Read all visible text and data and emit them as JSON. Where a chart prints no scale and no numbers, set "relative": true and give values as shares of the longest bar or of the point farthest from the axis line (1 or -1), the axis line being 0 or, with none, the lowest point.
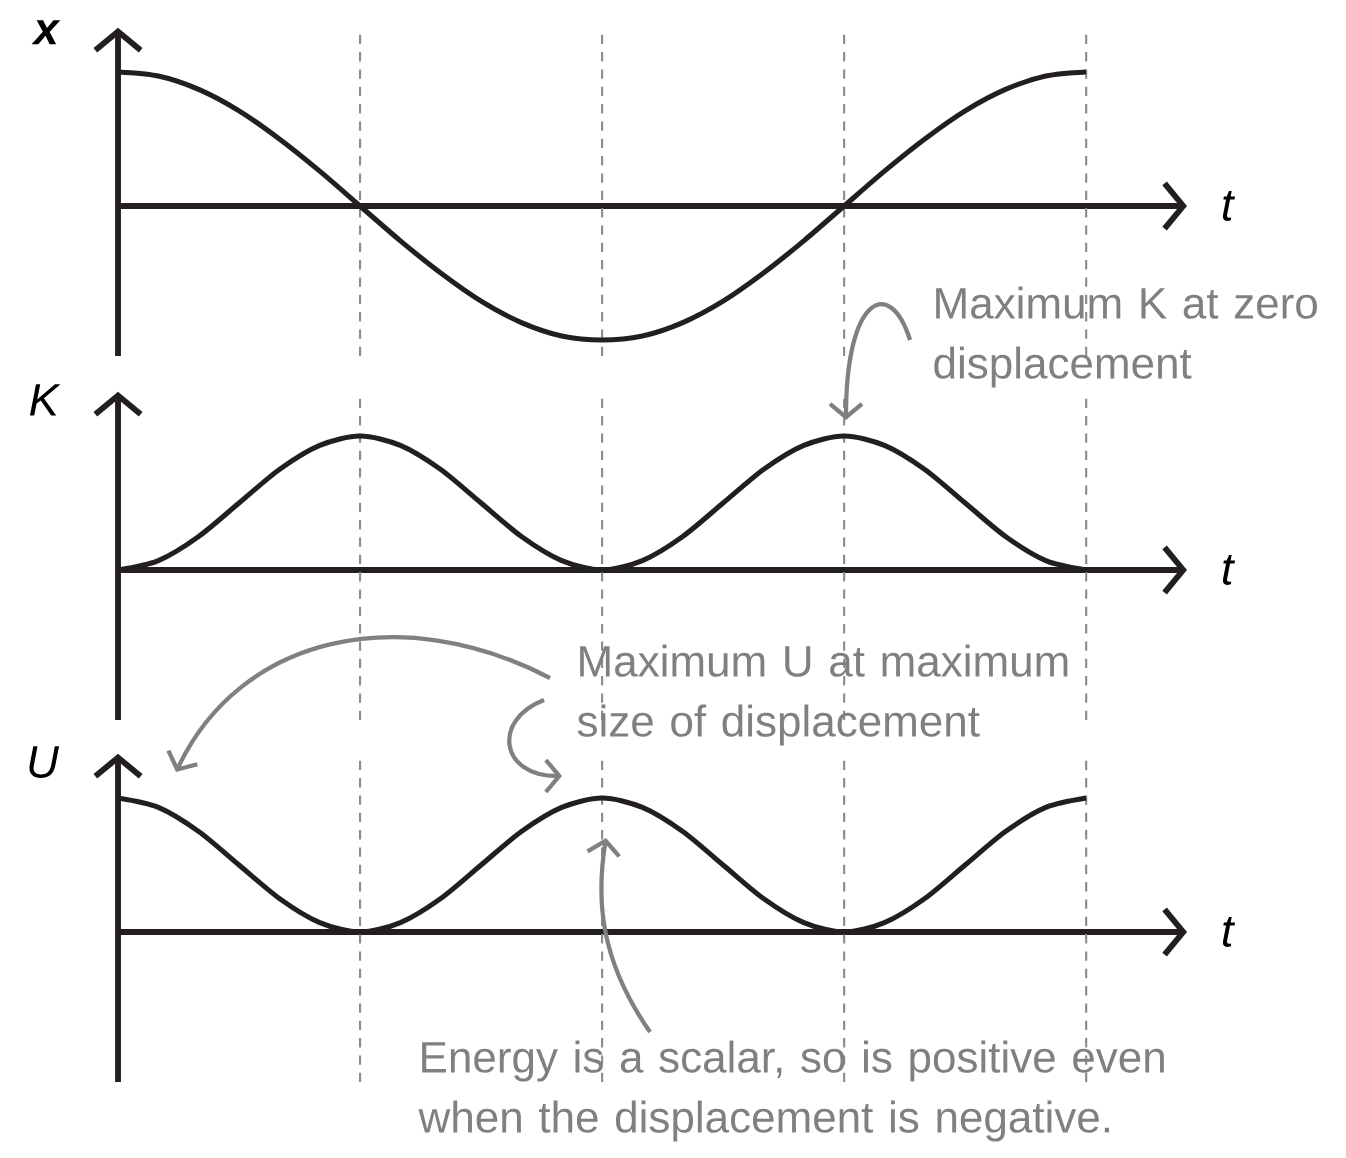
{
  "chart_data": [
    {
      "type": "line",
      "xlabel": "t",
      "ylabel": "x",
      "relative": true,
      "grid": "x",
      "categories": [
        null,
        null,
        null,
        null,
        null,
        null,
        null,
        null,
        null,
        null,
        null,
        null,
        null,
        null,
        null,
        null,
        null,
        null,
        null,
        null,
        null,
        null,
        null,
        null,
        null
      ],
      "series": [
        {
          "color": "#231f20",
          "values": [
            1,
            0.97,
            0.87,
            0.71,
            0.5,
            0.26,
            0,
            -0.26,
            -0.5,
            -0.71,
            -0.87,
            -0.97,
            -1,
            -0.97,
            -0.87,
            -0.71,
            -0.5,
            -0.26,
            0,
            0.26,
            0.5,
            0.71,
            0.87,
            0.97,
            1
          ]
        }
      ]
    },
    {
      "type": "line",
      "xlabel": "t",
      "ylabel": "K",
      "relative": true,
      "grid": "x",
      "categories": [
        null,
        null,
        null,
        null,
        null,
        null,
        null,
        null,
        null,
        null,
        null,
        null,
        null,
        null,
        null,
        null,
        null,
        null,
        null,
        null,
        null,
        null,
        null,
        null,
        null
      ],
      "series": [
        {
          "color": "#231f20",
          "values": [
            0,
            0.07,
            0.25,
            0.5,
            0.75,
            0.93,
            1,
            0.93,
            0.75,
            0.5,
            0.25,
            0.07,
            0,
            0.07,
            0.25,
            0.5,
            0.75,
            0.93,
            1,
            0.93,
            0.75,
            0.5,
            0.25,
            0.07,
            0
          ]
        }
      ],
      "annotations": [
        "Maximum K at zero displacement"
      ]
    },
    {
      "type": "line",
      "xlabel": "t",
      "ylabel": "U",
      "relative": true,
      "grid": "x",
      "categories": [
        null,
        null,
        null,
        null,
        null,
        null,
        null,
        null,
        null,
        null,
        null,
        null,
        null,
        null,
        null,
        null,
        null,
        null,
        null,
        null,
        null,
        null,
        null,
        null,
        null
      ],
      "series": [
        {
          "color": "#231f20",
          "values": [
            1,
            0.93,
            0.75,
            0.5,
            0.25,
            0.07,
            0,
            0.07,
            0.25,
            0.5,
            0.75,
            0.93,
            1,
            0.93,
            0.75,
            0.5,
            0.25,
            0.07,
            0,
            0.07,
            0.25,
            0.5,
            0.75,
            0.93,
            1
          ]
        }
      ],
      "annotations": [
        "Maximum U at maximum size of displacement",
        "Energy is a scalar, so is positive even when the displacement is negative."
      ]
    }
  ]
}
